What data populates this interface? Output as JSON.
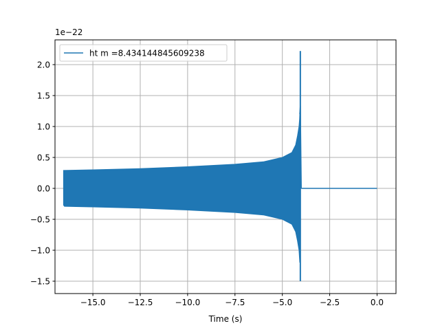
{
  "chart_data": {
    "type": "line",
    "title": "",
    "xlabel": "Time (s)",
    "ylabel": "",
    "y_offset_label": "1e−22",
    "xlim": [
      -17.0,
      1.0
    ],
    "ylim": [
      -1.7,
      2.4
    ],
    "grid": true,
    "legend_position": "top-left",
    "x_ticks": [
      {
        "value": -15.0,
        "label": "−15.0"
      },
      {
        "value": -12.5,
        "label": "−12.5"
      },
      {
        "value": -10.0,
        "label": "−10.0"
      },
      {
        "value": -7.5,
        "label": "−7.5"
      },
      {
        "value": -5.0,
        "label": "−5.0"
      },
      {
        "value": -2.5,
        "label": "−2.5"
      },
      {
        "value": 0.0,
        "label": "0.0"
      }
    ],
    "y_ticks": [
      {
        "value": -1.5,
        "label": "−1.5"
      },
      {
        "value": -1.0,
        "label": "−1.0"
      },
      {
        "value": -0.5,
        "label": "−0.5"
      },
      {
        "value": 0.0,
        "label": "0.0"
      },
      {
        "value": 0.5,
        "label": "0.5"
      },
      {
        "value": 1.0,
        "label": "1.0"
      },
      {
        "value": 1.5,
        "label": "1.5"
      },
      {
        "value": 2.0,
        "label": "2.0"
      }
    ],
    "series": [
      {
        "name": "ht m =8.434144845609238",
        "color": "#1f77b4",
        "upper_envelope": [
          [
            -16.55,
            0.0
          ],
          [
            -16.55,
            0.29
          ],
          [
            -15.0,
            0.3
          ],
          [
            -12.5,
            0.32
          ],
          [
            -10.0,
            0.35
          ],
          [
            -7.5,
            0.39
          ],
          [
            -6.0,
            0.43
          ],
          [
            -5.0,
            0.5
          ],
          [
            -4.5,
            0.58
          ],
          [
            -4.3,
            0.7
          ],
          [
            -4.2,
            0.85
          ],
          [
            -4.12,
            1.0
          ],
          [
            -4.09,
            1.12
          ],
          [
            -4.08,
            1.2
          ]
        ],
        "lower_envelope": [
          [
            -16.55,
            -0.27
          ],
          [
            -16.5,
            -0.29
          ],
          [
            -15.0,
            -0.3
          ],
          [
            -12.5,
            -0.32
          ],
          [
            -10.0,
            -0.35
          ],
          [
            -7.5,
            -0.39
          ],
          [
            -6.0,
            -0.43
          ],
          [
            -5.0,
            -0.5
          ],
          [
            -4.5,
            -0.58
          ],
          [
            -4.3,
            -0.7
          ],
          [
            -4.2,
            -0.85
          ],
          [
            -4.12,
            -1.0
          ],
          [
            -4.09,
            -1.15
          ],
          [
            -4.08,
            -1.2
          ]
        ],
        "merger_spike": {
          "x": -4.05,
          "y_max": 2.22,
          "y_min": -1.5
        },
        "ringdown_end": [
          -4.0,
          0.0
        ],
        "flat_segment": [
          [
            -4.0,
            0.0
          ],
          [
            0.0,
            0.0
          ]
        ]
      }
    ]
  }
}
